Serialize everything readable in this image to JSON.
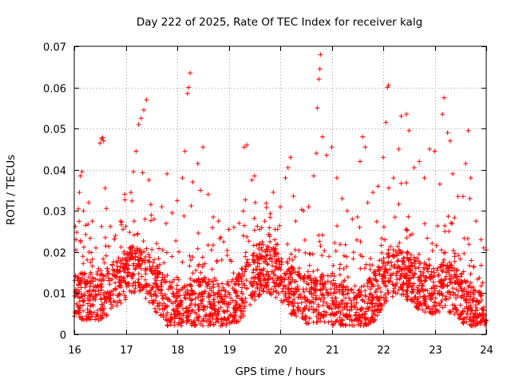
{
  "chart_data": {
    "type": "scatter",
    "title": "Day 222 of 2025, Rate Of TEC Index for receiver kalg",
    "xlabel": "GPS time / hours",
    "ylabel": "ROTI / TECUs",
    "xlim": [
      16,
      24
    ],
    "ylim": [
      0,
      0.07
    ],
    "xticks": [
      16,
      17,
      18,
      19,
      20,
      21,
      22,
      23,
      24
    ],
    "xtick_labels": [
      "16",
      "17",
      "18",
      "19",
      "20",
      "21",
      "22",
      "23",
      "24"
    ],
    "yticks": [
      0,
      0.01,
      0.02,
      0.03,
      0.04,
      0.05,
      0.06,
      0.07
    ],
    "ytick_labels": [
      "0",
      "0.01",
      "0.02",
      "0.03",
      "0.04",
      "0.05",
      "0.06",
      "0.07"
    ],
    "grid": true,
    "marker": "+",
    "color": "#ff0000",
    "series": [
      {
        "name": "ROTI",
        "points": [
          [
            16.02,
            0.0262
          ],
          [
            16.05,
            0.0248
          ],
          [
            16.08,
            0.0305
          ],
          [
            16.1,
            0.0345
          ],
          [
            16.12,
            0.0385
          ],
          [
            16.15,
            0.0395
          ],
          [
            16.18,
            0.03
          ],
          [
            16.22,
            0.0265
          ],
          [
            16.28,
            0.032
          ],
          [
            16.35,
            0.0275
          ],
          [
            16.42,
            0.021
          ],
          [
            16.5,
            0.0465
          ],
          [
            16.53,
            0.0475
          ],
          [
            16.55,
            0.0478
          ],
          [
            16.57,
            0.047
          ],
          [
            16.6,
            0.0355
          ],
          [
            16.7,
            0.0262
          ],
          [
            16.8,
            0.024
          ],
          [
            16.9,
            0.0275
          ],
          [
            17.0,
            0.0262
          ],
          [
            17.1,
            0.0345
          ],
          [
            17.15,
            0.0395
          ],
          [
            17.2,
            0.0445
          ],
          [
            17.25,
            0.051
          ],
          [
            17.3,
            0.0525
          ],
          [
            17.35,
            0.0545
          ],
          [
            17.4,
            0.057
          ],
          [
            17.45,
            0.0375
          ],
          [
            17.55,
            0.028
          ],
          [
            17.7,
            0.031
          ],
          [
            17.8,
            0.039
          ],
          [
            17.9,
            0.0295
          ],
          [
            18.0,
            0.0325
          ],
          [
            18.1,
            0.038
          ],
          [
            18.15,
            0.0445
          ],
          [
            18.2,
            0.0585
          ],
          [
            18.22,
            0.06
          ],
          [
            18.25,
            0.0635
          ],
          [
            18.3,
            0.037
          ],
          [
            18.4,
            0.0415
          ],
          [
            18.45,
            0.035
          ],
          [
            18.5,
            0.0455
          ],
          [
            18.6,
            0.034
          ],
          [
            18.7,
            0.0285
          ],
          [
            18.8,
            0.0275
          ],
          [
            18.9,
            0.0225
          ],
          [
            19.0,
            0.0255
          ],
          [
            19.1,
            0.026
          ],
          [
            19.2,
            0.027
          ],
          [
            19.3,
            0.0455
          ],
          [
            19.35,
            0.046
          ],
          [
            19.45,
            0.0375
          ],
          [
            19.5,
            0.0385
          ],
          [
            19.6,
            0.0255
          ],
          [
            19.7,
            0.0275
          ],
          [
            19.8,
            0.0225
          ],
          [
            19.9,
            0.0255
          ],
          [
            20.0,
            0.031
          ],
          [
            20.1,
            0.038
          ],
          [
            20.15,
            0.0405
          ],
          [
            20.2,
            0.043
          ],
          [
            20.3,
            0.0275
          ],
          [
            20.45,
            0.03
          ],
          [
            20.55,
            0.031
          ],
          [
            20.65,
            0.0385
          ],
          [
            20.7,
            0.044
          ],
          [
            20.72,
            0.055
          ],
          [
            20.75,
            0.062
          ],
          [
            20.77,
            0.0645
          ],
          [
            20.78,
            0.068
          ],
          [
            20.82,
            0.048
          ],
          [
            20.9,
            0.0435
          ],
          [
            21.0,
            0.0455
          ],
          [
            21.1,
            0.038
          ],
          [
            21.2,
            0.033
          ],
          [
            21.3,
            0.03
          ],
          [
            21.4,
            0.028
          ],
          [
            21.5,
            0.0285
          ],
          [
            21.55,
            0.042
          ],
          [
            21.6,
            0.048
          ],
          [
            21.65,
            0.0455
          ],
          [
            21.7,
            0.032
          ],
          [
            21.8,
            0.0345
          ],
          [
            21.9,
            0.036
          ],
          [
            22.0,
            0.043
          ],
          [
            22.05,
            0.0515
          ],
          [
            22.08,
            0.06
          ],
          [
            22.1,
            0.0605
          ],
          [
            22.2,
            0.038
          ],
          [
            22.3,
            0.045
          ],
          [
            22.35,
            0.053
          ],
          [
            22.45,
            0.0535
          ],
          [
            22.5,
            0.0495
          ],
          [
            22.6,
            0.0405
          ],
          [
            22.7,
            0.042
          ],
          [
            22.8,
            0.038
          ],
          [
            22.9,
            0.045
          ],
          [
            23.0,
            0.0445
          ],
          [
            23.1,
            0.0365
          ],
          [
            23.15,
            0.0535
          ],
          [
            23.18,
            0.0575
          ],
          [
            23.25,
            0.049
          ],
          [
            23.3,
            0.047
          ],
          [
            23.35,
            0.039
          ],
          [
            23.45,
            0.0335
          ],
          [
            23.55,
            0.0335
          ],
          [
            23.6,
            0.0415
          ],
          [
            23.65,
            0.0495
          ],
          [
            23.7,
            0.038
          ],
          [
            23.8,
            0.0275
          ],
          [
            23.9,
            0.023
          ],
          [
            23.95,
            0.021
          ],
          [
            24.0,
            0.0205
          ]
        ]
      }
    ]
  }
}
